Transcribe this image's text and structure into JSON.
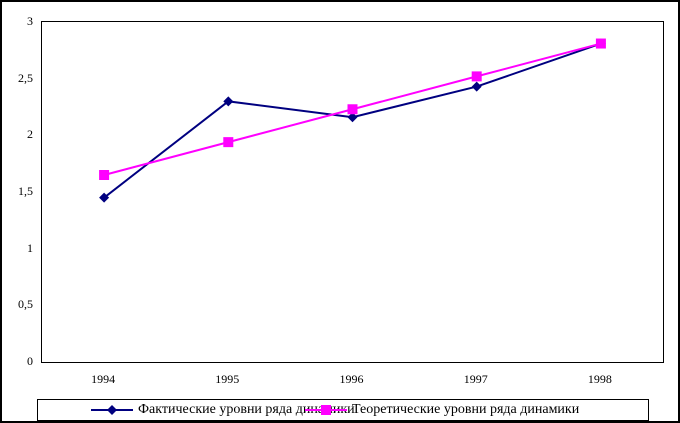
{
  "chart_data": {
    "type": "line",
    "categories": [
      "1994",
      "1995",
      "1996",
      "1997",
      "1998"
    ],
    "series": [
      {
        "name": "Фактические уровни ряда динамики",
        "color": "#000080",
        "marker": "diamond",
        "values": [
          1.45,
          2.3,
          2.16,
          2.43,
          2.81
        ]
      },
      {
        "name": "Теоретические уровни ряда динамики",
        "color": "#FF00FF",
        "marker": "square",
        "values": [
          1.65,
          1.94,
          2.23,
          2.52,
          2.81
        ]
      }
    ],
    "title": "",
    "xlabel": "",
    "ylabel": "",
    "ylim": [
      0,
      3
    ],
    "ytick_step": 0.5,
    "ytick_labels": [
      "0",
      "0,5",
      "1",
      "1,5",
      "2",
      "2,5",
      "3"
    ],
    "grid": false,
    "legend_position": "bottom",
    "plot_background": "#FFFFFF",
    "frame_color": "#000000"
  },
  "legend": {
    "items": [
      {
        "label": "Фактические уровни ряда динамики"
      },
      {
        "label": "Теоретические уровни ряда динамики"
      }
    ]
  }
}
